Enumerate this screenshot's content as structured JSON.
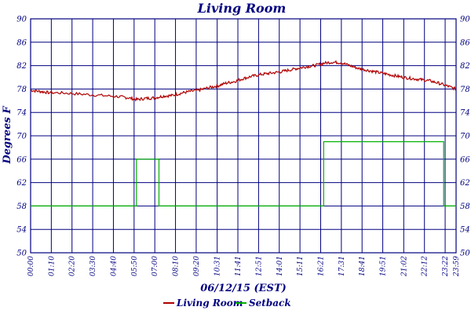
{
  "chart_data": {
    "type": "line",
    "title": "Living Room",
    "xlabel": "06/12/15 (EST)",
    "ylabel": "Degrees F",
    "ylim": [
      50,
      90
    ],
    "yticks": [
      50,
      54,
      58,
      62,
      66,
      70,
      74,
      78,
      82,
      86,
      90
    ],
    "xlim": [
      "00:00",
      "23:59"
    ],
    "xticks": [
      "00:00",
      "01:10",
      "02:20",
      "03:30",
      "04:40",
      "05:50",
      "07:00",
      "08:10",
      "09:20",
      "10:31",
      "11:41",
      "12:51",
      "14:01",
      "15:11",
      "16:21",
      "17:31",
      "18:41",
      "19:51",
      "21:02",
      "22:12",
      "23:22",
      "23:59"
    ],
    "grid": true,
    "legend_position": "bottom",
    "colors": {
      "grid": "#000080",
      "text": "#000080",
      "living_room": "#b00000",
      "setback": "#00b000"
    },
    "series": [
      {
        "name": "Living Room",
        "color": "#b00000",
        "x": [
          "00:00",
          "00:30",
          "01:00",
          "02:00",
          "03:00",
          "04:00",
          "05:00",
          "05:30",
          "06:00",
          "06:30",
          "07:00",
          "07:30",
          "08:00",
          "08:30",
          "09:00",
          "09:30",
          "10:00",
          "10:30",
          "11:00",
          "11:30",
          "12:00",
          "12:30",
          "13:00",
          "13:30",
          "14:00",
          "14:30",
          "15:00",
          "15:30",
          "16:00",
          "16:30",
          "17:00",
          "17:30",
          "18:00",
          "18:30",
          "19:00",
          "19:30",
          "20:00",
          "20:30",
          "21:00",
          "21:30",
          "22:00",
          "22:30",
          "23:00",
          "23:30",
          "23:59"
        ],
        "values": [
          77.8,
          77.6,
          77.4,
          77.3,
          77.1,
          76.9,
          76.7,
          76.5,
          76.2,
          76.4,
          76.5,
          76.8,
          76.9,
          77.3,
          77.6,
          77.8,
          78.2,
          78.5,
          79.0,
          79.3,
          79.8,
          80.2,
          80.5,
          80.7,
          80.9,
          81.2,
          81.5,
          81.8,
          82.0,
          82.4,
          82.6,
          82.5,
          82.0,
          81.5,
          81.2,
          80.9,
          80.6,
          80.3,
          80.0,
          79.8,
          79.6,
          79.4,
          79.0,
          78.5,
          78.0
        ]
      },
      {
        "name": "Setback",
        "color": "#00b000",
        "x": [
          "00:00",
          "05:58",
          "05:58",
          "07:14",
          "07:14",
          "16:31",
          "16:31",
          "23:17",
          "23:17",
          "23:59"
        ],
        "values": [
          58,
          58,
          66,
          66,
          58,
          58,
          69,
          69,
          58,
          58
        ]
      }
    ]
  }
}
